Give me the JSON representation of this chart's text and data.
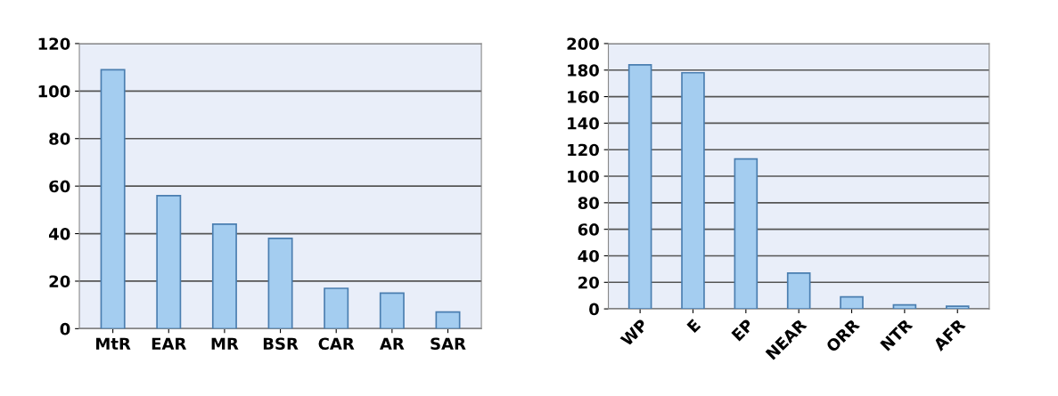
{
  "chart_data": [
    {
      "type": "bar",
      "categories": [
        "MtR",
        "EAR",
        "MR",
        "BSR",
        "CAR",
        "AR",
        "SAR"
      ],
      "values": [
        109,
        56,
        44,
        38,
        17,
        15,
        7
      ],
      "color": "#a4cdf0",
      "ylim": [
        0,
        120
      ],
      "yticks": [
        0,
        20,
        40,
        60,
        80,
        100,
        120
      ],
      "grid": "y"
    },
    {
      "type": "bar",
      "categories": [
        "WP",
        "E",
        "EP",
        "NEAR",
        "ORR",
        "NTR",
        "AFR"
      ],
      "values": [
        184,
        178,
        113,
        27,
        9,
        3,
        2
      ],
      "color": "#a4cdf0",
      "ylim": [
        0,
        200
      ],
      "yticks": [
        0,
        20,
        40,
        60,
        80,
        100,
        120,
        140,
        160,
        180,
        200
      ],
      "grid": "y"
    }
  ]
}
